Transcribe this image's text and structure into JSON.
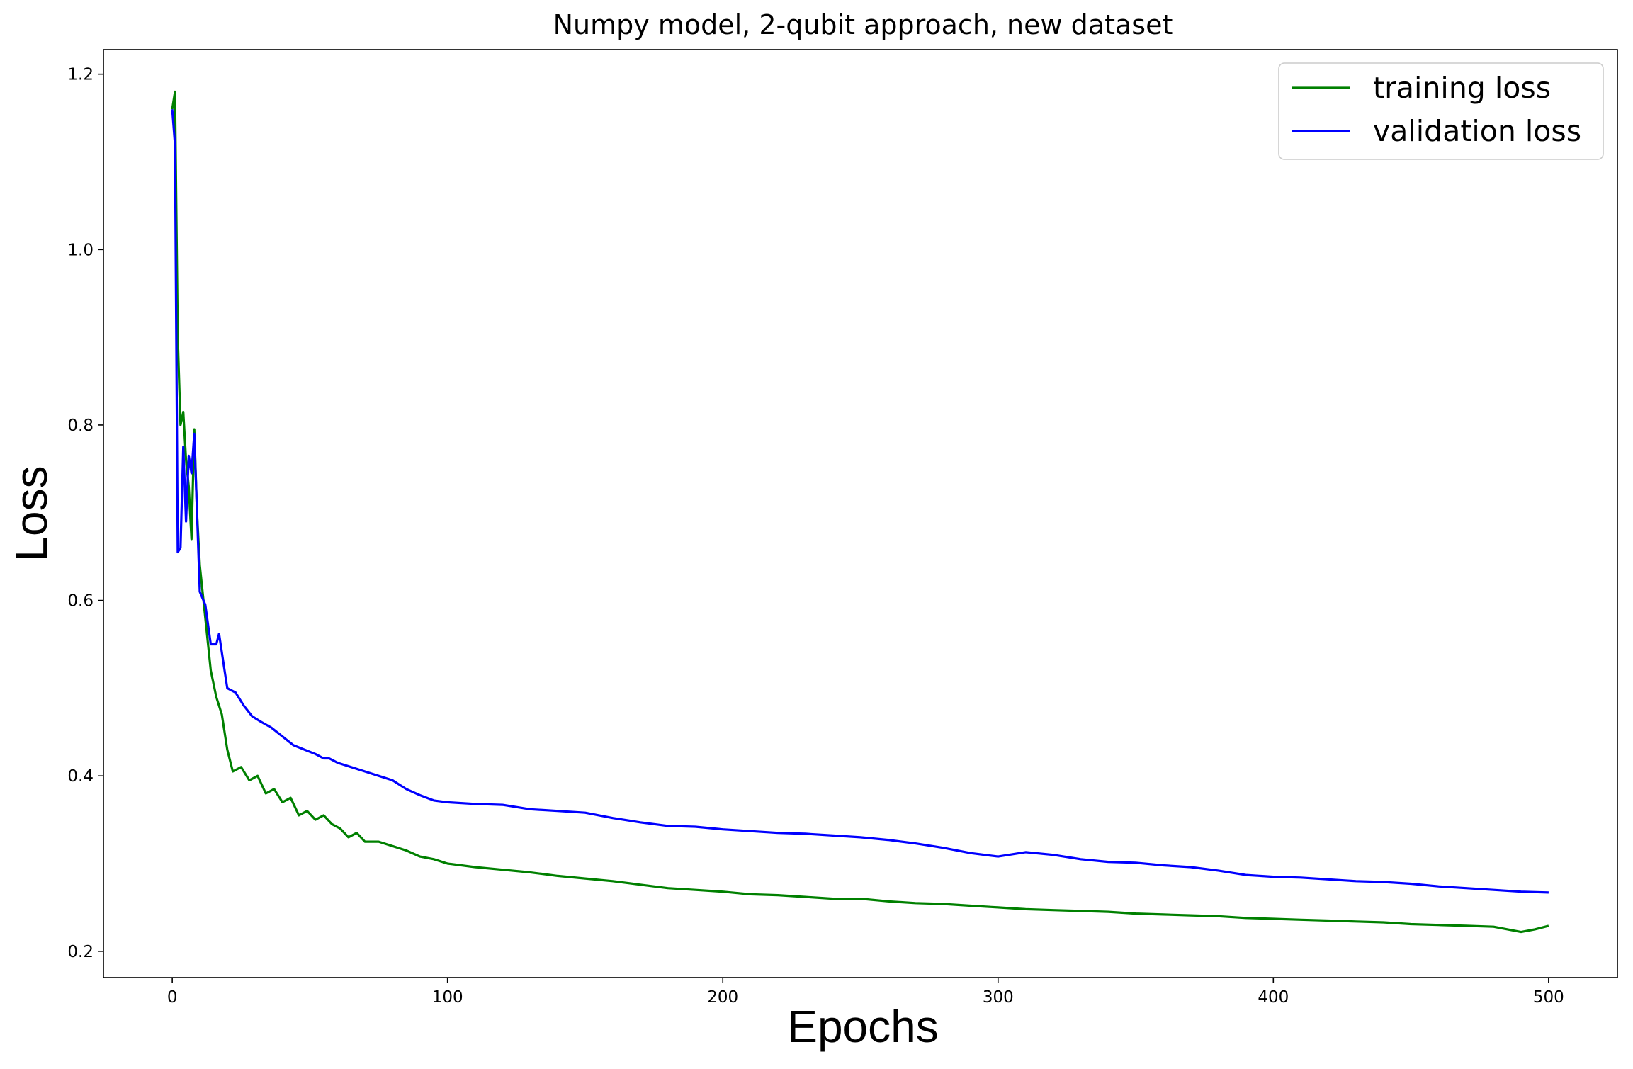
{
  "chart_data": {
    "type": "line",
    "title": "Numpy model, 2-qubit approach, new dataset",
    "xlabel": "Epochs",
    "ylabel": "Loss",
    "xlim": [
      -25,
      525
    ],
    "ylim": [
      0.17,
      1.228
    ],
    "xticks": [
      0,
      100,
      200,
      300,
      400,
      500
    ],
    "yticks": [
      0.2,
      0.4,
      0.6,
      0.8,
      1.0,
      1.2
    ],
    "xtick_labels": [
      "0",
      "100",
      "200",
      "300",
      "400",
      "500"
    ],
    "ytick_labels": [
      "0.2",
      "0.4",
      "0.6",
      "0.8",
      "1.0",
      "1.2"
    ],
    "grid": false,
    "legend_position": "top-right",
    "series": [
      {
        "name": "training loss",
        "color": "#008000",
        "points": [
          [
            0,
            1.16
          ],
          [
            1,
            1.18
          ],
          [
            2,
            0.9
          ],
          [
            3,
            0.8
          ],
          [
            4,
            0.815
          ],
          [
            5,
            0.76
          ],
          [
            6,
            0.73
          ],
          [
            7,
            0.67
          ],
          [
            8,
            0.795
          ],
          [
            9,
            0.7
          ],
          [
            10,
            0.64
          ],
          [
            12,
            0.58
          ],
          [
            14,
            0.52
          ],
          [
            16,
            0.49
          ],
          [
            18,
            0.47
          ],
          [
            20,
            0.43
          ],
          [
            22,
            0.405
          ],
          [
            25,
            0.41
          ],
          [
            28,
            0.395
          ],
          [
            31,
            0.4
          ],
          [
            34,
            0.38
          ],
          [
            37,
            0.385
          ],
          [
            40,
            0.37
          ],
          [
            43,
            0.375
          ],
          [
            46,
            0.355
          ],
          [
            49,
            0.36
          ],
          [
            52,
            0.35
          ],
          [
            55,
            0.355
          ],
          [
            58,
            0.345
          ],
          [
            61,
            0.34
          ],
          [
            64,
            0.33
          ],
          [
            67,
            0.335
          ],
          [
            70,
            0.325
          ],
          [
            75,
            0.325
          ],
          [
            80,
            0.32
          ],
          [
            85,
            0.315
          ],
          [
            90,
            0.308
          ],
          [
            95,
            0.305
          ],
          [
            100,
            0.3
          ],
          [
            110,
            0.296
          ],
          [
            120,
            0.293
          ],
          [
            130,
            0.29
          ],
          [
            140,
            0.286
          ],
          [
            150,
            0.283
          ],
          [
            160,
            0.28
          ],
          [
            170,
            0.276
          ],
          [
            180,
            0.272
          ],
          [
            190,
            0.27
          ],
          [
            200,
            0.268
          ],
          [
            210,
            0.265
          ],
          [
            220,
            0.264
          ],
          [
            230,
            0.262
          ],
          [
            240,
            0.26
          ],
          [
            250,
            0.26
          ],
          [
            260,
            0.257
          ],
          [
            270,
            0.255
          ],
          [
            280,
            0.254
          ],
          [
            290,
            0.252
          ],
          [
            300,
            0.25
          ],
          [
            310,
            0.248
          ],
          [
            320,
            0.247
          ],
          [
            330,
            0.246
          ],
          [
            340,
            0.245
          ],
          [
            350,
            0.243
          ],
          [
            360,
            0.242
          ],
          [
            370,
            0.241
          ],
          [
            380,
            0.24
          ],
          [
            390,
            0.238
          ],
          [
            400,
            0.237
          ],
          [
            410,
            0.236
          ],
          [
            420,
            0.235
          ],
          [
            430,
            0.234
          ],
          [
            440,
            0.233
          ],
          [
            450,
            0.231
          ],
          [
            460,
            0.23
          ],
          [
            470,
            0.229
          ],
          [
            480,
            0.228
          ],
          [
            490,
            0.222
          ],
          [
            495,
            0.225
          ],
          [
            500,
            0.229
          ]
        ]
      },
      {
        "name": "validation loss",
        "color": "#0000ff",
        "points": [
          [
            0,
            1.16
          ],
          [
            1,
            1.12
          ],
          [
            2,
            0.655
          ],
          [
            3,
            0.66
          ],
          [
            4,
            0.775
          ],
          [
            5,
            0.69
          ],
          [
            6,
            0.765
          ],
          [
            7,
            0.745
          ],
          [
            8,
            0.79
          ],
          [
            9,
            0.7
          ],
          [
            10,
            0.61
          ],
          [
            12,
            0.595
          ],
          [
            14,
            0.55
          ],
          [
            16,
            0.55
          ],
          [
            17,
            0.562
          ],
          [
            19,
            0.52
          ],
          [
            20,
            0.5
          ],
          [
            23,
            0.495
          ],
          [
            26,
            0.48
          ],
          [
            29,
            0.468
          ],
          [
            32,
            0.462
          ],
          [
            36,
            0.455
          ],
          [
            40,
            0.445
          ],
          [
            44,
            0.435
          ],
          [
            48,
            0.43
          ],
          [
            52,
            0.425
          ],
          [
            55,
            0.42
          ],
          [
            57,
            0.42
          ],
          [
            60,
            0.415
          ],
          [
            65,
            0.41
          ],
          [
            70,
            0.405
          ],
          [
            75,
            0.4
          ],
          [
            80,
            0.395
          ],
          [
            85,
            0.385
          ],
          [
            90,
            0.378
          ],
          [
            95,
            0.372
          ],
          [
            100,
            0.37
          ],
          [
            110,
            0.368
          ],
          [
            120,
            0.367
          ],
          [
            130,
            0.362
          ],
          [
            140,
            0.36
          ],
          [
            150,
            0.358
          ],
          [
            160,
            0.352
          ],
          [
            170,
            0.347
          ],
          [
            180,
            0.343
          ],
          [
            190,
            0.342
          ],
          [
            200,
            0.339
          ],
          [
            210,
            0.337
          ],
          [
            220,
            0.335
          ],
          [
            230,
            0.334
          ],
          [
            240,
            0.332
          ],
          [
            250,
            0.33
          ],
          [
            260,
            0.327
          ],
          [
            270,
            0.323
          ],
          [
            280,
            0.318
          ],
          [
            290,
            0.312
          ],
          [
            300,
            0.308
          ],
          [
            310,
            0.313
          ],
          [
            320,
            0.31
          ],
          [
            330,
            0.305
          ],
          [
            340,
            0.302
          ],
          [
            350,
            0.301
          ],
          [
            360,
            0.298
          ],
          [
            370,
            0.296
          ],
          [
            380,
            0.292
          ],
          [
            390,
            0.287
          ],
          [
            400,
            0.285
          ],
          [
            410,
            0.284
          ],
          [
            420,
            0.282
          ],
          [
            430,
            0.28
          ],
          [
            440,
            0.279
          ],
          [
            450,
            0.277
          ],
          [
            460,
            0.274
          ],
          [
            470,
            0.272
          ],
          [
            480,
            0.27
          ],
          [
            490,
            0.268
          ],
          [
            500,
            0.267
          ]
        ]
      }
    ]
  }
}
